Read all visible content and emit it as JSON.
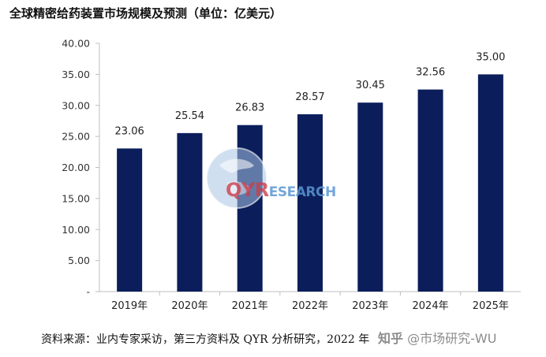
{
  "header": {
    "title": "全球精密给药装置市场规模及预测（单位：亿美元）"
  },
  "chart_data": {
    "type": "bar",
    "title": "全球精密给药装置市场规模及预测（单位：亿美元）",
    "xlabel": "",
    "ylabel": "",
    "categories": [
      "2019年",
      "2020年",
      "2021年",
      "2022年",
      "2023年",
      "2024年",
      "2025年"
    ],
    "series": [
      {
        "values": [
          23.06,
          25.54,
          26.83,
          28.57,
          30.45,
          32.56,
          35.0
        ],
        "data_labels": [
          "23.06",
          "25.54",
          "26.83",
          "28.57",
          "30.45",
          "32.56",
          "35.00"
        ]
      }
    ],
    "ylim": [
      0,
      40
    ],
    "yticks": [
      0,
      5,
      10,
      15,
      20,
      25,
      30,
      35,
      40
    ],
    "ytick_labels": [
      "-",
      "5.00",
      "10.00",
      "15.00",
      "20.00",
      "25.00",
      "30.00",
      "35.00",
      "40.00"
    ],
    "grid": false,
    "legend": "none",
    "bar_color": "#0b1e5b"
  },
  "footer": {
    "source": "资料来源：业内专家采访，第三方资料及 QYR 分析研究，2022 年",
    "credit_mark": "知乎",
    "credit_text": " @市场研究-WU"
  },
  "watermark": {
    "brand_q": "QYR",
    "brand_rest": "ESEARCH",
    "globe_color": "#a9c4e4",
    "brand_red": "#cd3c4b",
    "brand_blue": "#5a96d2"
  }
}
